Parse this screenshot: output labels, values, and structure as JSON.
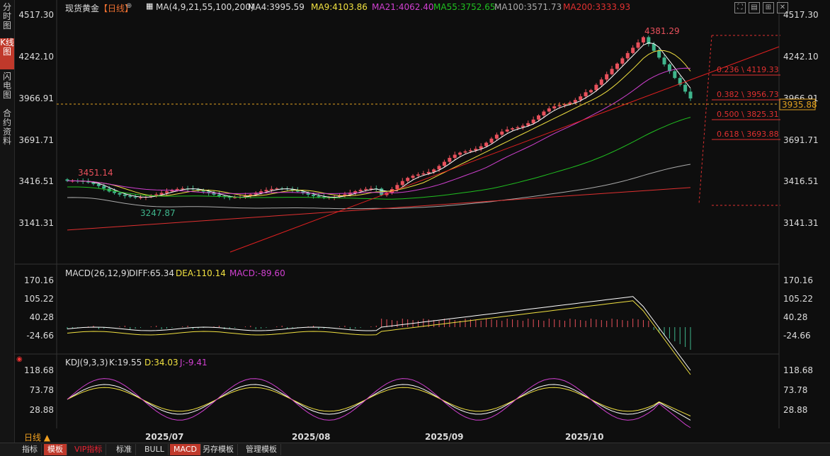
{
  "sidebar": {
    "tabs": [
      {
        "label": "分时图",
        "active": false
      },
      {
        "label": "K线图",
        "active": true
      },
      {
        "label": "闪电图",
        "active": false
      },
      {
        "label": "合约资料",
        "active": false
      }
    ]
  },
  "header": {
    "symbol": "现货黄金",
    "period_tag": "【日线】",
    "ma_params": "MA(4,9,21,55,100,200)",
    "ma4": "MA4:3995.59",
    "ma9": "MA9:4103.86",
    "ma21": "MA21:4062.40",
    "ma55": "MA55:3752.65",
    "ma100": "MA100:3571.73",
    "ma200": "MA200:3333.93"
  },
  "macd_header": {
    "name": "MACD(26,12,9)",
    "diff": "DIFF:65.34",
    "dea": "DEA:110.14",
    "macd": "MACD:-89.60"
  },
  "kdj_header": {
    "name": "KDJ(9,3,3)",
    "k": "K:19.55",
    "d": "D:34.03",
    "j": "J:-9.41"
  },
  "price_axis": {
    "left": [
      "4517.30",
      "4242.10",
      "3966.91",
      "3691.71",
      "3416.51",
      "3141.31"
    ],
    "right": [
      "4517.30",
      "4242.10",
      "3966.91",
      "3691.71",
      "3416.51",
      "3141.31"
    ],
    "current_price": "3935.88"
  },
  "macd_axis": [
    "170.16",
    "105.22",
    "40.28",
    "-24.66"
  ],
  "kdj_axis": [
    "118.68",
    "73.78",
    "28.88"
  ],
  "annotations": {
    "high": "4381.29",
    "prev_high": "3451.14",
    "low": "3247.87"
  },
  "fib_levels": [
    {
      "label": "0.236 \\ 4119.33"
    },
    {
      "label": "0.382 \\ 3956.73"
    },
    {
      "label": "0.500 \\ 3825.31"
    },
    {
      "label": "0.618 \\ 3693.88"
    }
  ],
  "dates": [
    "2025/07",
    "2025/08",
    "2025/09",
    "2025/10"
  ],
  "bottom_tabs": [
    {
      "label": "指标",
      "active": false
    },
    {
      "label": "模板",
      "active": true
    },
    {
      "label": "VIP指标",
      "active": false
    },
    {
      "label": "标准",
      "active": false
    },
    {
      "label": "BULL",
      "active": false
    },
    {
      "label": "MACD",
      "active": true
    },
    {
      "label": "另存模板",
      "active": false
    },
    {
      "label": "管理模板",
      "active": false
    }
  ],
  "period_selector": "日线 ▲",
  "colors": {
    "up": "#e8505b",
    "down": "#3fb58c",
    "ma4": "#ffffff",
    "ma9": "#f0e040",
    "ma21": "#d040d0",
    "ma55": "#20c020",
    "ma100": "#aaaaaa",
    "ma200": "#e03030"
  }
}
